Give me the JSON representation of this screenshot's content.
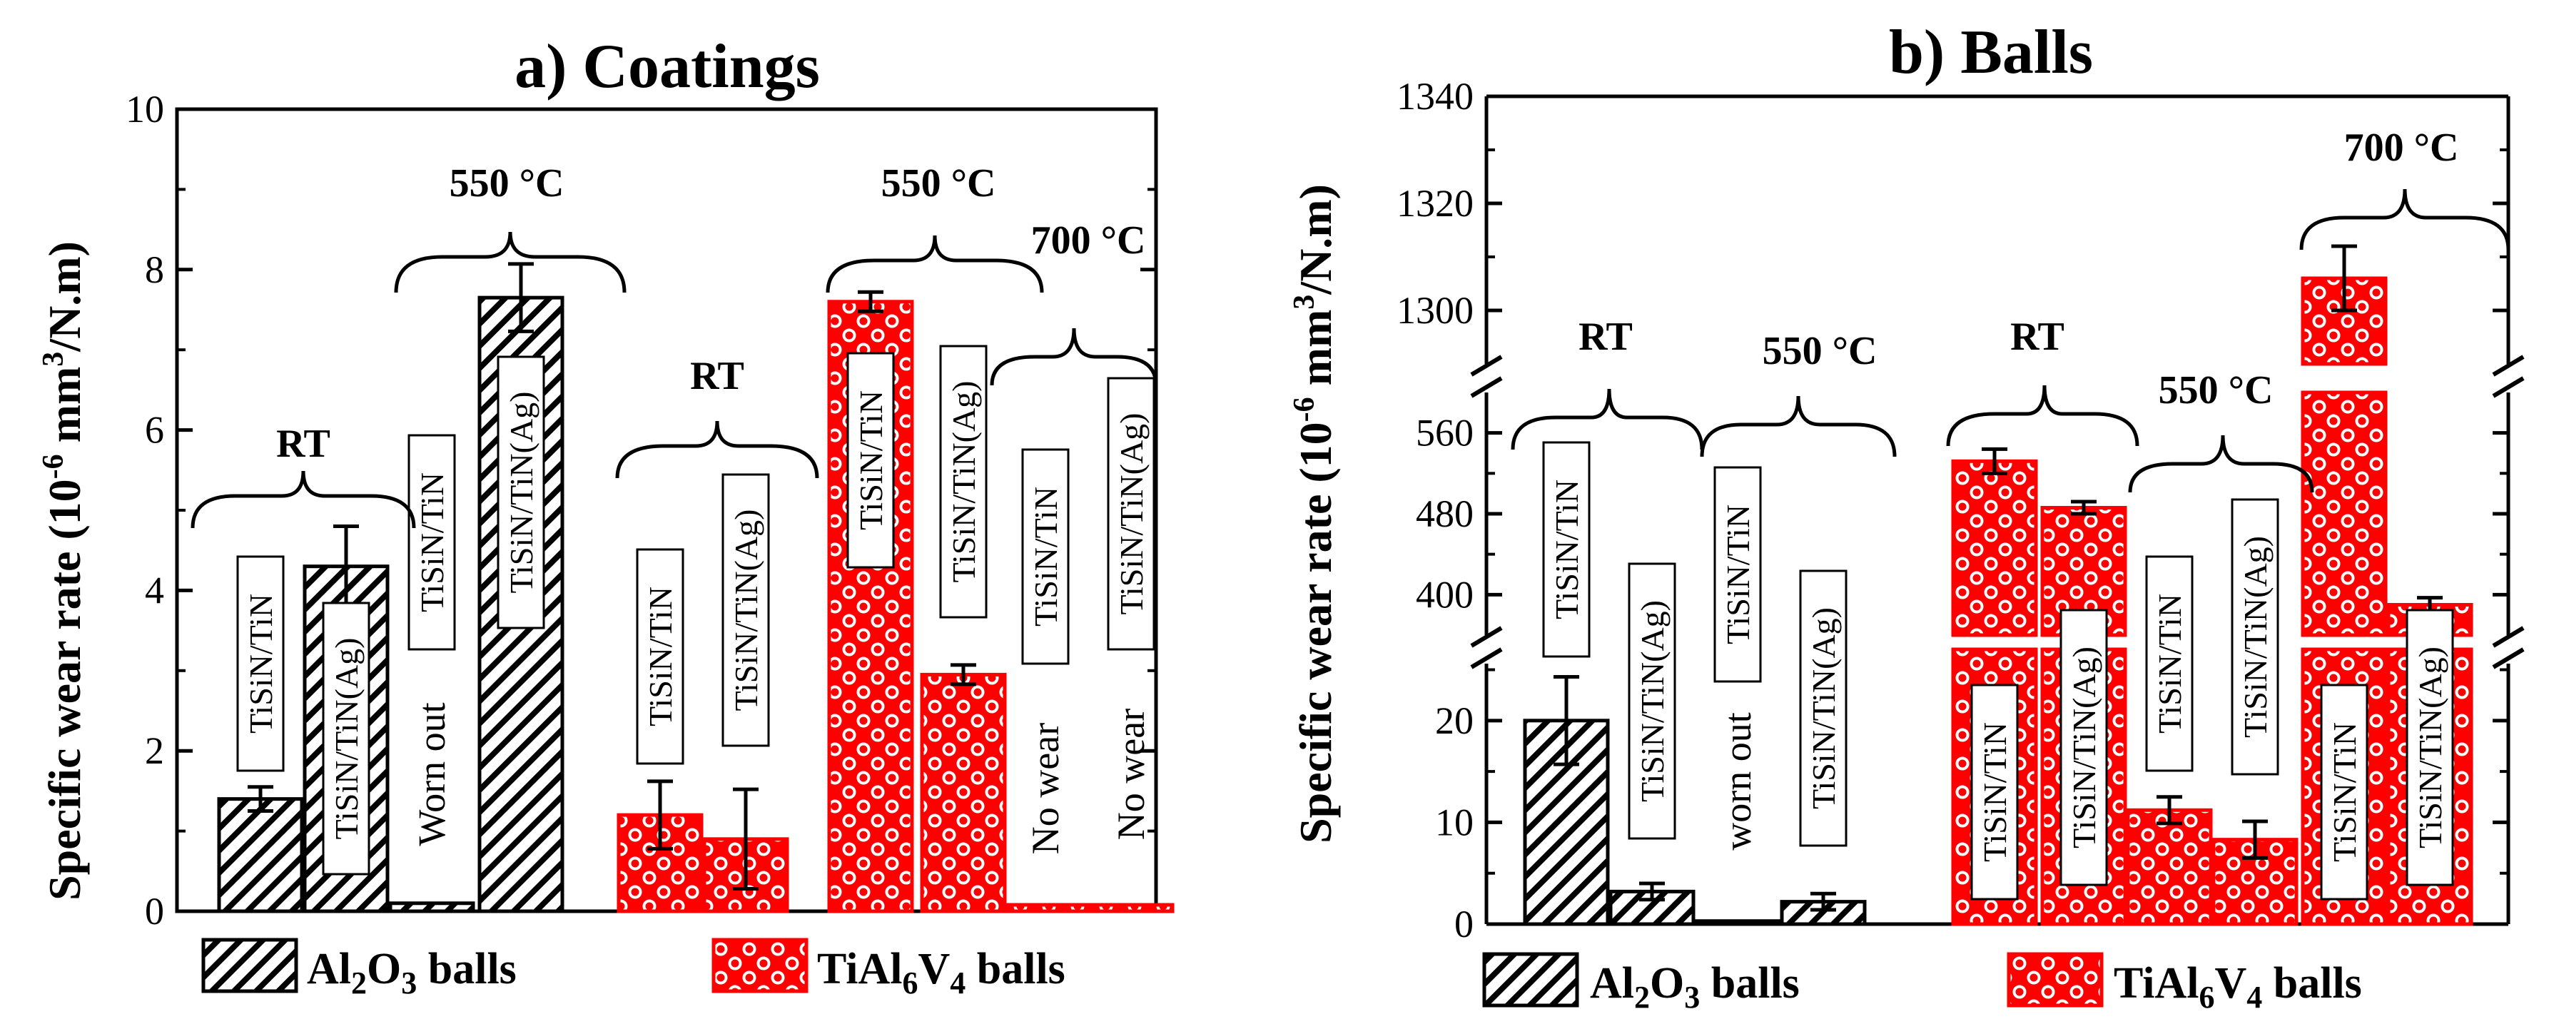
{
  "chart_data": [
    {
      "type": "bar",
      "panel": "a",
      "title": "a)  Coatings",
      "ylabel": "Specific wear rate (10",
      "ylabel_sup": "-6",
      "ylabel_tail": " mm",
      "ylabel_sup2": "3",
      "ylabel_end": "/N.m)",
      "ylim": [
        0,
        10
      ],
      "yticks": [
        "0",
        "2",
        "4",
        "6",
        "8",
        "10"
      ],
      "bars": [
        {
          "group": "RT",
          "ball": "Al2O3",
          "label": "TiSiN/TiN",
          "value": 1.4,
          "error": 0.15
        },
        {
          "group": "RT",
          "ball": "Al2O3",
          "label": "TiSiN/TiN(Ag)",
          "value": 4.3,
          "error": 0.5
        },
        {
          "group": "550 °C",
          "ball": "Al2O3",
          "label": "TiSiN/TiN",
          "value": 0.1,
          "error": 0,
          "note": "Worn out"
        },
        {
          "group": "550 °C",
          "ball": "Al2O3",
          "label": "TiSiN/TiN(Ag)",
          "value": 7.65,
          "error": 0.42
        },
        {
          "group": "RT",
          "ball": "TiAl6V4",
          "label": "TiSiN/TiN",
          "value": 1.2,
          "error": 0.42
        },
        {
          "group": "RT",
          "ball": "TiAl6V4",
          "label": "TiSiN/TiN(Ag)",
          "value": 0.9,
          "error": 0.62
        },
        {
          "group": "550 °C",
          "ball": "TiAl6V4",
          "label": "TiSiN/TiN",
          "value": 7.6,
          "error": 0.12
        },
        {
          "group": "550 °C",
          "ball": "TiAl6V4",
          "label": "TiSiN/TiN(Ag)",
          "value": 2.95,
          "error": 0.12
        },
        {
          "group": "700 °C",
          "ball": "TiAl6V4",
          "label": "TiSiN/TiN",
          "value": 0.08,
          "error": 0,
          "note": "No wear"
        },
        {
          "group": "700 °C",
          "ball": "TiAl6V4",
          "label": "TiSiN/TiN(Ag)",
          "value": 0.08,
          "error": 0,
          "note": "No wear"
        }
      ],
      "groups": [
        "RT",
        "550 °C",
        "RT",
        "550 °C",
        "700 °C"
      ]
    },
    {
      "type": "bar",
      "panel": "b",
      "title": "b) Balls",
      "ylabel": "Specific wear rate (10",
      "ylabel_sup": "-6",
      "ylabel_tail": " mm",
      "ylabel_sup2": "3",
      "ylabel_end": "/N.m)",
      "axis_breaks": [
        [
          27,
          360
        ],
        [
          600,
          1290
        ]
      ],
      "ylim": [
        0,
        1340
      ],
      "yticks": [
        "0",
        "10",
        "20",
        "400",
        "480",
        "560",
        "1300",
        "1320",
        "1340"
      ],
      "bars": [
        {
          "group": "RT",
          "ball": "Al2O3",
          "label": "TiSiN/TiN",
          "value": 20,
          "error": 4.3
        },
        {
          "group": "RT",
          "ball": "Al2O3",
          "label": "TiSiN/TiN(Ag)",
          "value": 3.2,
          "error": 0.8
        },
        {
          "group": "550 °C",
          "ball": "Al2O3",
          "label": "TiSiN/TiN",
          "value": 0.3,
          "error": 0,
          "note": "worn out"
        },
        {
          "group": "550 °C",
          "ball": "Al2O3",
          "label": "TiSiN/TiN(Ag)",
          "value": 2.2,
          "error": 0.8
        },
        {
          "group": "RT",
          "ball": "TiAl6V4",
          "label": "TiSiN/TiN",
          "value": 532,
          "error": 12
        },
        {
          "group": "RT",
          "ball": "TiAl6V4",
          "label": "TiSiN/TiN(Ag)",
          "value": 486,
          "error": 6
        },
        {
          "group": "550 °C",
          "ball": "TiAl6V4",
          "label": "TiSiN/TiN",
          "value": 11.2,
          "error": 1.3
        },
        {
          "group": "550 °C",
          "ball": "TiAl6V4",
          "label": "TiSiN/TiN(Ag)",
          "value": 8.3,
          "error": 1.8
        },
        {
          "group": "700 °C",
          "ball": "TiAl6V4",
          "label": "TiSiN/TiN",
          "value": 1306,
          "error": 6
        },
        {
          "group": "700 °C",
          "ball": "TiAl6V4",
          "label": "TiSiN/TiN(Ag)",
          "value": 390,
          "error": 7
        }
      ],
      "groups": [
        "RT",
        "550 °C",
        "RT",
        "550 °C",
        "700 °C"
      ]
    }
  ],
  "legend": {
    "al2o3": {
      "pre": "Al",
      "sub1": "2",
      "mid": "O",
      "sub2": "3",
      "post": " balls"
    },
    "tial6v4": {
      "pre": "TiAl",
      "sub1": "6",
      "mid": "V",
      "sub2": "4",
      "post": " balls"
    }
  },
  "colors": {
    "ti_fill": "#ff0000",
    "ti_dot": "#ffffff",
    "al_stroke": "#000000"
  }
}
